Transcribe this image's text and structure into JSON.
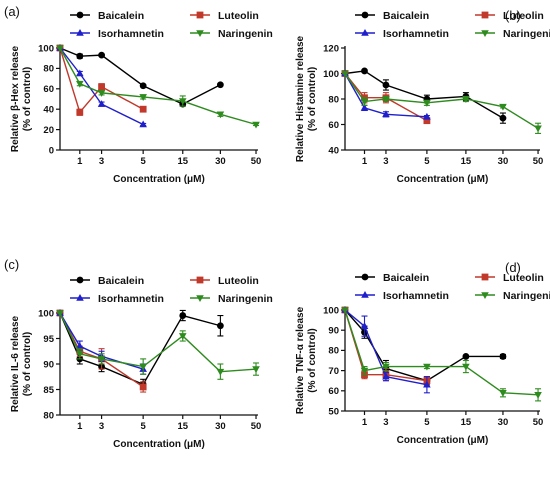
{
  "colors": {
    "Baicalein": "#000000",
    "Luteolin": "#c0392b",
    "Isorhamnetin": "#1f1fcc",
    "Naringenin": "#2e8b1e",
    "legend_markers": {
      "Baicalein": "circle",
      "Luteolin": "square",
      "Isorhamnetin": "triangle-up",
      "Naringenin": "triangle-down"
    }
  },
  "chart_data": [
    {
      "type": "line",
      "panel_label": "(a)",
      "ylabel_line1": "Relative β-Hex release",
      "ylabel_line2": "(% of control)",
      "xlabel": "Concentration (μM)",
      "ylim": [
        0,
        100
      ],
      "yticks": [
        "0",
        "20",
        "40",
        "60",
        "80",
        "100"
      ],
      "xticks": [
        "1",
        "3",
        "5",
        "15",
        "30",
        "50"
      ],
      "legend": [
        "Baicalein",
        "Luteolin",
        "Isorhamnetin",
        "Naringenin"
      ],
      "series": [
        {
          "name": "Baicalein",
          "points": [
            [
              "0",
              100
            ],
            [
              "1",
              92
            ],
            [
              "3",
              93
            ],
            [
              "5",
              63
            ],
            [
              "15",
              45
            ],
            [
              "30",
              64
            ]
          ],
          "err": [
            0,
            2,
            1,
            1,
            2,
            1
          ]
        },
        {
          "name": "Luteolin",
          "points": [
            [
              "0",
              100
            ],
            [
              "1",
              37
            ],
            [
              "3",
              62
            ],
            [
              "5",
              40
            ]
          ],
          "err": [
            0,
            3,
            3,
            2
          ]
        },
        {
          "name": "Isorhamnetin",
          "points": [
            [
              "0",
              100
            ],
            [
              "1",
              75
            ],
            [
              "3",
              45
            ],
            [
              "5",
              25
            ]
          ],
          "err": [
            0,
            2,
            2,
            1
          ]
        },
        {
          "name": "Naringenin",
          "points": [
            [
              "0",
              100
            ],
            [
              "1",
              65
            ],
            [
              "3",
              56
            ],
            [
              "5",
              52
            ],
            [
              "15",
              48
            ],
            [
              "30",
              35
            ],
            [
              "50",
              25
            ]
          ],
          "err": [
            0,
            2,
            2,
            2,
            5,
            2,
            1
          ]
        }
      ]
    },
    {
      "type": "line",
      "panel_label": "(b)",
      "ylabel_line1": "Relative Histamine release",
      "ylabel_line2": "(% of control)",
      "xlabel": "Concentration (μM)",
      "ylim": [
        40,
        120
      ],
      "yticks": [
        "40",
        "60",
        "80",
        "100",
        "120"
      ],
      "xticks": [
        "1",
        "3",
        "5",
        "15",
        "30",
        "50"
      ],
      "legend": [
        "Baicalein",
        "Luteolin",
        "Isorhamnetin",
        "Naringenin"
      ],
      "series": [
        {
          "name": "Baicalein",
          "points": [
            [
              "0",
              100
            ],
            [
              "1",
              102
            ],
            [
              "3",
              91
            ],
            [
              "5",
              80
            ],
            [
              "15",
              82
            ],
            [
              "30",
              65
            ]
          ],
          "err": [
            0,
            1,
            4,
            3,
            3,
            4
          ]
        },
        {
          "name": "Luteolin",
          "points": [
            [
              "0",
              100
            ],
            [
              "1",
              81
            ],
            [
              "3",
              81
            ],
            [
              "5",
              63
            ]
          ],
          "err": [
            0,
            4,
            4,
            2
          ]
        },
        {
          "name": "Isorhamnetin",
          "points": [
            [
              "0",
              100
            ],
            [
              "1",
              73
            ],
            [
              "3",
              68
            ],
            [
              "5",
              66
            ]
          ],
          "err": [
            0,
            2,
            2,
            1
          ]
        },
        {
          "name": "Naringenin",
          "points": [
            [
              "0",
              100
            ],
            [
              "1",
              78
            ],
            [
              "3",
              80
            ],
            [
              "5",
              77
            ],
            [
              "15",
              80
            ],
            [
              "30",
              74
            ],
            [
              "50",
              57
            ]
          ],
          "err": [
            0,
            3,
            2,
            2,
            2,
            1,
            4
          ]
        }
      ]
    },
    {
      "type": "line",
      "panel_label": "(c)",
      "ylabel_line1": "Relative IL-6 release",
      "ylabel_line2": "(% of control)",
      "xlabel": "Concentration (μM)",
      "ylim": [
        80,
        100
      ],
      "yticks": [
        "80",
        "85",
        "90",
        "95",
        "100"
      ],
      "xticks": [
        "1",
        "3",
        "5",
        "15",
        "30",
        "50"
      ],
      "legend": [
        "Baicalein",
        "Luteolin",
        "Isorhamnetin",
        "Naringenin"
      ],
      "series": [
        {
          "name": "Baicalein",
          "points": [
            [
              "0",
              100
            ],
            [
              "1",
              91
            ],
            [
              "3",
              89.5
            ],
            [
              "5",
              86
            ],
            [
              "15",
              99.5
            ],
            [
              "30",
              97.5
            ]
          ],
          "err": [
            0,
            1,
            1,
            1,
            1,
            2
          ]
        },
        {
          "name": "Luteolin",
          "points": [
            [
              "0",
              100
            ],
            [
              "1",
              92.5
            ],
            [
              "3",
              91
            ],
            [
              "5",
              85.5
            ]
          ],
          "err": [
            0,
            1,
            2,
            1
          ]
        },
        {
          "name": "Isorhamnetin",
          "points": [
            [
              "0",
              100
            ],
            [
              "1",
              93.5
            ],
            [
              "3",
              91.5
            ],
            [
              "5",
              89
            ]
          ],
          "err": [
            0,
            1,
            1,
            1
          ]
        },
        {
          "name": "Naringenin",
          "points": [
            [
              "0",
              100
            ],
            [
              "1",
              92
            ],
            [
              "3",
              91
            ],
            [
              "5",
              89.5
            ],
            [
              "15",
              95.5
            ],
            [
              "30",
              88.5
            ],
            [
              "50",
              89
            ]
          ],
          "err": [
            0,
            1,
            1,
            1.5,
            1,
            1.5,
            1.2
          ]
        }
      ]
    },
    {
      "type": "line",
      "panel_label": "(d)",
      "ylabel_line1": "Relative TNF-α release",
      "ylabel_line2": "(% of control)",
      "xlabel": "Concentration (μM)",
      "ylim": [
        50,
        100
      ],
      "yticks": [
        "50",
        "60",
        "70",
        "80",
        "90",
        "100"
      ],
      "xticks": [
        "1",
        "3",
        "5",
        "15",
        "30",
        "50"
      ],
      "legend": [
        "Baicalein",
        "Luteolin",
        "Isorhamnetin",
        "Naringenin"
      ],
      "series": [
        {
          "name": "Baicalein",
          "points": [
            [
              "0",
              100
            ],
            [
              "1",
              89
            ],
            [
              "3",
              71
            ],
            [
              "5",
              65
            ],
            [
              "15",
              77
            ],
            [
              "30",
              77
            ]
          ],
          "err": [
            0,
            3,
            4,
            2,
            0.5,
            1
          ]
        },
        {
          "name": "Luteolin",
          "points": [
            [
              "0",
              100
            ],
            [
              "1",
              68
            ],
            [
              "3",
              68
            ],
            [
              "5",
              65
            ]
          ],
          "err": [
            0,
            2,
            3,
            2
          ]
        },
        {
          "name": "Isorhamnetin",
          "points": [
            [
              "0",
              100
            ],
            [
              "1",
              92
            ],
            [
              "3",
              67
            ],
            [
              "5",
              63
            ]
          ],
          "err": [
            0,
            5,
            2,
            4
          ]
        },
        {
          "name": "Naringenin",
          "points": [
            [
              "0",
              100
            ],
            [
              "1",
              70
            ],
            [
              "3",
              72
            ],
            [
              "5",
              72
            ],
            [
              "15",
              72
            ],
            [
              "30",
              59
            ],
            [
              "50",
              58
            ]
          ],
          "err": [
            0,
            2,
            2,
            1,
            3,
            2,
            3
          ]
        }
      ]
    }
  ]
}
